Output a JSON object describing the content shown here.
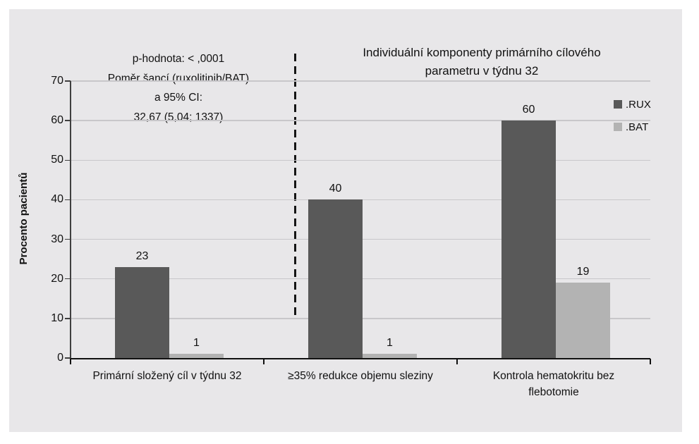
{
  "figure": {
    "background": "#ffffff",
    "panel_background": "#e8e7e9",
    "gridline_color": "#c8c7ca",
    "axis_color": "#111111"
  },
  "chart_data": {
    "type": "bar",
    "title": "Individuální komponenty primárního cílového parametru v týdnu 32",
    "title_lines": [
      "Individuální komponenty primárního cílového",
      "parametru v týdnu 32"
    ],
    "categories": [
      "Primární složený cíl v týdnu 32",
      "≥35% redukce objemu sleziny",
      "Kontrola hematokritu bez flebotomie"
    ],
    "category_label_lines": [
      [
        "Primární složený cíl v týdnu 32"
      ],
      [
        "≥35% redukce objemu sleziny"
      ],
      [
        "Kontrola hematokritu bez",
        "flebotomie"
      ]
    ],
    "series": [
      {
        "name": ".RUX",
        "color": "#595959",
        "values": [
          23,
          40,
          60
        ]
      },
      {
        "name": ".BAT",
        "color": "#b3b3b3",
        "values": [
          1,
          1,
          19
        ]
      }
    ],
    "xlabel": "",
    "ylabel": "Procento pacientů",
    "ylim": [
      0,
      70
    ],
    "yticks": [
      0,
      10,
      20,
      30,
      40,
      50,
      60,
      70
    ],
    "grid": true,
    "legend_position": "right-top",
    "annotation": {
      "lines": [
        "p-hodnota: < ,0001",
        "Poměr šancí (ruxolitinib/BAT)",
        "a 95% CI:",
        "32,67 (5,04; 1337)"
      ]
    },
    "separator": "dashed vertical line between category 1 and individual components"
  }
}
